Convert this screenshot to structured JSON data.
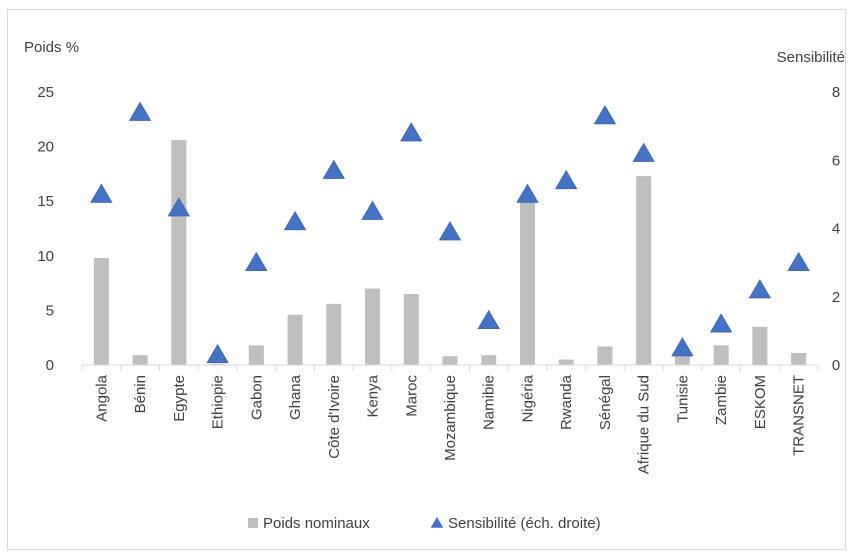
{
  "chart_data": {
    "type": "bar",
    "categories": [
      "Angola",
      "Bénin",
      "Egypte",
      "Ethiopie",
      "Gabon",
      "Ghana",
      "Côte d'Ivoire",
      "Kenya",
      "Maroc",
      "Mozambique",
      "Namibie",
      "Nigéria",
      "Rwanda",
      "Sénégal",
      "Afrique du Sud",
      "Tunisie",
      "Zambie",
      "ESKOM",
      "TRANSNET"
    ],
    "series": [
      {
        "name": "Poids nominaux",
        "type": "bar",
        "axis": "left",
        "color": "#bfbfbf",
        "values": [
          9.8,
          0.9,
          20.6,
          0.1,
          1.8,
          4.6,
          5.6,
          7.0,
          6.5,
          0.8,
          0.9,
          15.0,
          0.5,
          1.7,
          17.3,
          0.8,
          1.8,
          3.5,
          1.1
        ]
      },
      {
        "name": "Sensibilité  (éch. droite)",
        "type": "scatter",
        "marker": "triangle",
        "axis": "right",
        "color": "#4472c4",
        "values": [
          5.0,
          7.4,
          4.6,
          0.3,
          3.0,
          4.2,
          5.7,
          4.5,
          6.8,
          3.9,
          1.3,
          5.0,
          5.4,
          7.3,
          6.2,
          0.5,
          1.2,
          2.2,
          3.0
        ]
      }
    ],
    "ylabel": "Poids %",
    "ylabel_right": "Sensibilité",
    "ylim": [
      0,
      25
    ],
    "ylim_right": [
      0,
      8
    ],
    "yticks": [
      "0",
      "5",
      "10",
      "15",
      "20",
      "25"
    ],
    "yticks_right": [
      "0",
      "2",
      "4",
      "6",
      "8"
    ],
    "grid": false,
    "legend_position": "bottom"
  }
}
